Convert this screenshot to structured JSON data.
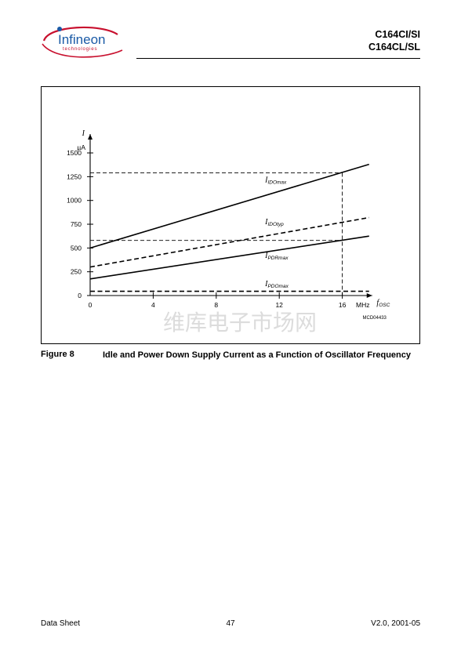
{
  "header": {
    "logo_text": "Infineon",
    "logo_subtext": "technologies",
    "part_line1": "C164CI/SI",
    "part_line2": "C164CL/SL"
  },
  "chart_data": {
    "type": "line",
    "xlabel_var": "f",
    "xlabel_sub": "OSC",
    "x_unit": "MHz",
    "ylabel_var": "I",
    "y_unit": "µA",
    "xlim": [
      0,
      17.5
    ],
    "ylim": [
      0,
      1500
    ],
    "x_ticks": [
      0,
      4,
      8,
      12,
      16
    ],
    "y_ticks": [
      0,
      250,
      500,
      750,
      1000,
      1250,
      1500
    ],
    "grid": false,
    "series": [
      {
        "name": "I",
        "sub": "IDOmax",
        "style": "solid",
        "x": [
          0,
          17.7
        ],
        "y": [
          500,
          1380
        ],
        "label_x": 11.1,
        "label_y": 1190
      },
      {
        "name": "I",
        "sub": "IDOtyp",
        "style": "dashed",
        "x": [
          0,
          17.7
        ],
        "y": [
          300,
          820
        ],
        "label_x": 11.1,
        "label_y": 750
      },
      {
        "name": "I",
        "sub": "PDRmax",
        "style": "solid",
        "x": [
          0,
          17.7
        ],
        "y": [
          175,
          625
        ],
        "label_x": 11.1,
        "label_y": 395
      },
      {
        "name": "I",
        "sub": "PDOmax",
        "style": "dashed",
        "x": [
          0,
          17.7
        ],
        "y": [
          45,
          45
        ],
        "label_x": 11.1,
        "label_y": 100
      }
    ],
    "reference_lines": [
      {
        "x": 16,
        "y": 1290
      },
      {
        "x": 16,
        "y": 580
      }
    ],
    "code": "MCD04433",
    "watermark": "维库电子市场网"
  },
  "caption": {
    "label": "Figure 8",
    "text": "Idle and Power Down Supply Current as a Function of Oscillator Frequency"
  },
  "footer": {
    "left": "Data Sheet",
    "center": "47",
    "right": "V2.0, 2001-05"
  },
  "colors": {
    "logo_blue": "#1a5aa6",
    "logo_red": "#c8102e"
  }
}
